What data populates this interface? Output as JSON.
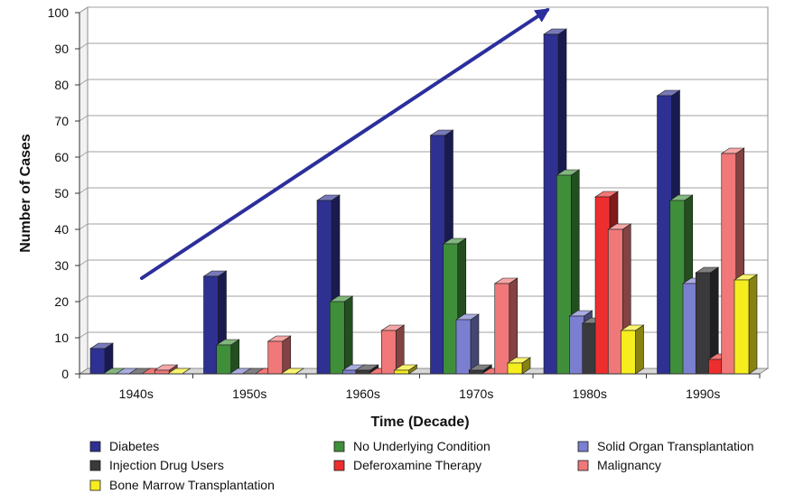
{
  "chart_data": {
    "type": "bar",
    "xlabel": "Time (Decade)",
    "ylabel": "Number of Cases",
    "ylim": [
      0,
      100
    ],
    "yticks": [
      0,
      10,
      20,
      30,
      40,
      50,
      60,
      70,
      80,
      90,
      100
    ],
    "grid": true,
    "three_d": true,
    "legend_position": "bottom",
    "categories": [
      "1940s",
      "1950s",
      "1960s",
      "1970s",
      "1980s",
      "1990s"
    ],
    "series": [
      {
        "name": "Diabetes",
        "color": "#2e3192",
        "values": [
          7,
          27,
          48,
          66,
          94,
          77
        ]
      },
      {
        "name": "No Underlying Condition",
        "color": "#3f8f3a",
        "values": [
          0,
          8,
          20,
          36,
          55,
          48
        ]
      },
      {
        "name": "Solid Organ Transplantation",
        "color": "#7b7fd0",
        "values": [
          0,
          0,
          1,
          15,
          16,
          25
        ]
      },
      {
        "name": "Injection Drug Users",
        "color": "#3a3a3d",
        "values": [
          0,
          0,
          1,
          1,
          14,
          28
        ]
      },
      {
        "name": "Deferoxamine Therapy",
        "color": "#ee2e2e",
        "values": [
          0,
          0,
          0,
          0,
          49,
          4
        ]
      },
      {
        "name": "Malignancy",
        "color": "#f07878",
        "values": [
          1,
          9,
          12,
          25,
          40,
          61
        ]
      },
      {
        "name": "Bone Marrow Transplantation",
        "color": "#f5ed1e",
        "values": [
          0,
          0,
          1,
          3,
          12,
          26
        ]
      }
    ],
    "annotation": {
      "type": "arrow",
      "meaning": "increasing trend",
      "color": "#2b2f9c"
    }
  }
}
